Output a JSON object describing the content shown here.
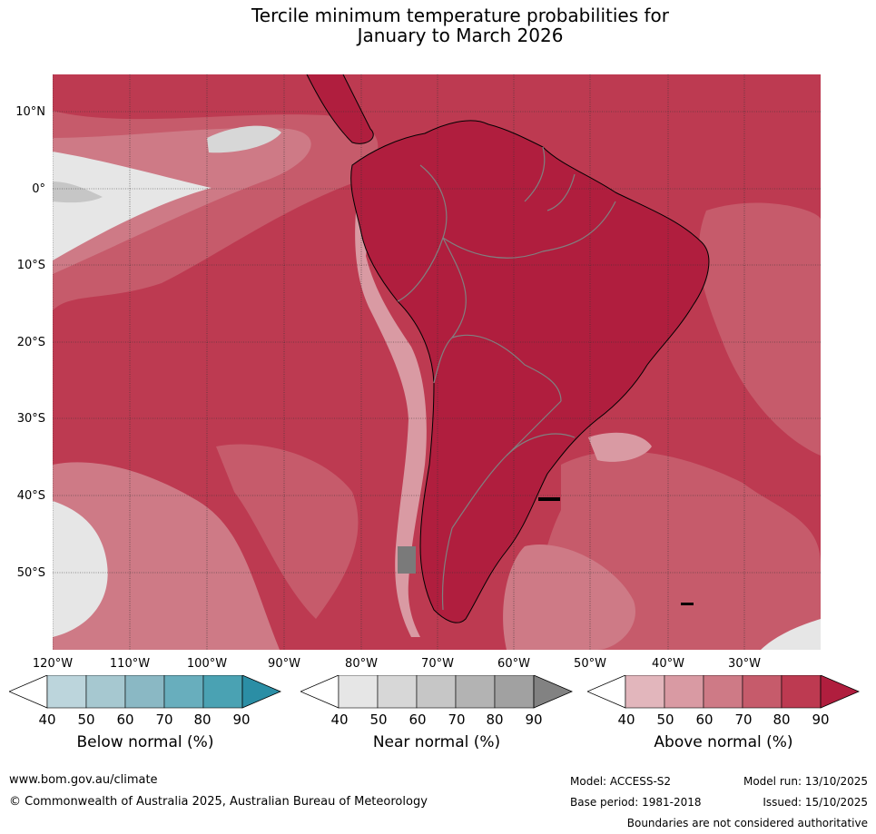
{
  "title_line1": "Tercile minimum temperature probabilities for",
  "title_line2": "January to March 2026",
  "lat_labels": [
    "10°N",
    "0°",
    "10°S",
    "20°S",
    "30°S",
    "40°S",
    "50°S"
  ],
  "lon_labels": [
    "120°W",
    "110°W",
    "100°W",
    "90°W",
    "80°W",
    "70°W",
    "60°W",
    "50°W",
    "40°W",
    "30°W"
  ],
  "colorbars": [
    {
      "title": "Below normal (%)",
      "ticks": [
        "40",
        "50",
        "60",
        "70",
        "80",
        "90"
      ],
      "colors": [
        "#ffffff",
        "#bcd5dc",
        "#a6c8d0",
        "#8ab8c4",
        "#68aebd",
        "#4aa2b3",
        "#2b8ea5"
      ]
    },
    {
      "title": "Near normal (%)",
      "ticks": [
        "40",
        "50",
        "60",
        "70",
        "80",
        "90"
      ],
      "colors": [
        "#ffffff",
        "#e6e6e6",
        "#d7d7d7",
        "#c6c6c6",
        "#b3b3b3",
        "#a1a1a1",
        "#828282"
      ]
    },
    {
      "title": "Above normal (%)",
      "ticks": [
        "40",
        "50",
        "60",
        "70",
        "80",
        "90"
      ],
      "colors": [
        "#ffffff",
        "#e2b6bc",
        "#d99aa3",
        "#ce7a86",
        "#c65b6b",
        "#bd3a51",
        "#b01e3e"
      ]
    }
  ],
  "map_colors": {
    "a90": "#b01e3e",
    "a80": "#bd3a51",
    "a70": "#c65b6b",
    "a60": "#ce7a86",
    "a50": "#d99aa3",
    "a40": "#e2b6bc",
    "n40": "#e6e6e6",
    "n50": "#d7d7d7",
    "n60": "#c6c6c6",
    "n70": "#b3b3b3",
    "n80": "#a1a1a1"
  },
  "footer": {
    "website": "www.bom.gov.au/climate",
    "copyright": "© Commonwealth of Australia 2025, Australian Bureau of Meteorology",
    "model": "Model: ACCESS-S2",
    "base_period": "Base period: 1981-2018",
    "model_run": "Model run: 13/10/2025",
    "issued": "Issued: 15/10/2025",
    "disclaimer": "Boundaries are not considered authoritative"
  }
}
